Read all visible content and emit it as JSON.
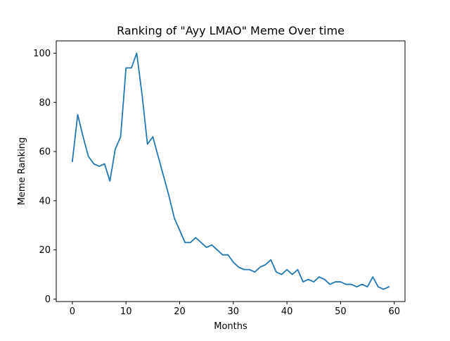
{
  "chart_data": {
    "type": "line",
    "title": "Ranking of \"Ayy LMAO\" Meme Over time",
    "xlabel": "Months",
    "ylabel": "Meme Ranking",
    "xlim": [
      -3,
      62
    ],
    "ylim": [
      -1,
      105
    ],
    "xticks": [
      0,
      10,
      20,
      30,
      40,
      50,
      60
    ],
    "yticks": [
      0,
      20,
      40,
      60,
      80,
      100
    ],
    "grid": false,
    "series": [
      {
        "color": "#1f77b4",
        "x": [
          0,
          1,
          2,
          3,
          4,
          5,
          6,
          7,
          8,
          9,
          10,
          11,
          12,
          13,
          14,
          15,
          16,
          17,
          18,
          19,
          20,
          21,
          22,
          23,
          24,
          25,
          26,
          27,
          28,
          29,
          30,
          31,
          32,
          33,
          34,
          35,
          36,
          37,
          38,
          39,
          40,
          41,
          42,
          43,
          44,
          45,
          46,
          47,
          48,
          49,
          50,
          51,
          52,
          53,
          54,
          55,
          56,
          57,
          58,
          59
        ],
        "values": [
          56,
          75,
          66,
          58,
          55,
          54,
          55,
          48,
          61,
          66,
          94,
          94,
          100,
          83,
          63,
          66,
          58,
          50,
          42,
          33,
          28,
          23,
          23,
          25,
          23,
          21,
          22,
          20,
          18,
          18,
          15,
          13,
          12,
          12,
          11,
          13,
          14,
          16,
          11,
          10,
          12,
          10,
          12,
          7,
          8,
          7,
          9,
          8,
          6,
          7,
          7,
          6,
          6,
          5,
          6,
          5,
          9,
          5,
          4,
          5
        ]
      }
    ]
  }
}
